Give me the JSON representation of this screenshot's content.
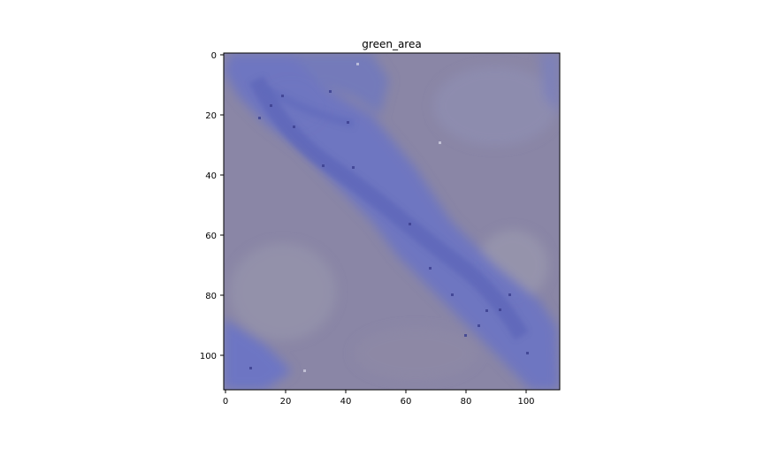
{
  "figure": {
    "title": "green_area",
    "x_ticks": [
      "0",
      "20",
      "40",
      "60",
      "80",
      "100"
    ],
    "y_ticks": [
      "0",
      "20",
      "40",
      "60",
      "80",
      "100"
    ]
  },
  "image": {
    "description_colors": {
      "background": "#8a86a6",
      "stripe": "#6f77c4",
      "stripe_dark": "#4b55a8",
      "light_patch": "#9b9ab0"
    }
  }
}
